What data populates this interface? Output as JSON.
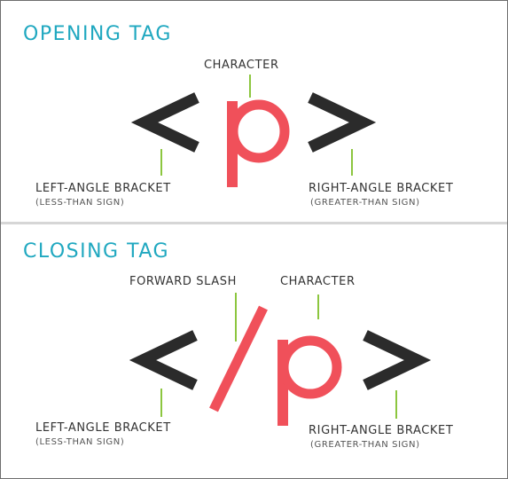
{
  "opening": {
    "heading": "OPENING TAG",
    "character_label": "CHARACTER",
    "left_label": "LEFT-ANGLE BRACKET",
    "left_sub": "(LESS-THAN SIGN)",
    "right_label": "RIGHT-ANGLE BRACKET",
    "right_sub": "(GREATER-THAN SIGN)",
    "glyph_char": "p"
  },
  "closing": {
    "heading": "CLOSING TAG",
    "slash_label": "FORWARD SLASH",
    "character_label": "CHARACTER",
    "left_label": "LEFT-ANGLE BRACKET",
    "left_sub": "(LESS-THAN SIGN)",
    "right_label": "RIGHT-ANGLE BRACKET",
    "right_sub": "(GREATER-THAN SIGN)",
    "glyph_char": "p"
  },
  "colors": {
    "heading": "#20a8c0",
    "bracket": "#2b2b2b",
    "accent_red": "#f0505a",
    "tick_green": "#8cc63f"
  }
}
